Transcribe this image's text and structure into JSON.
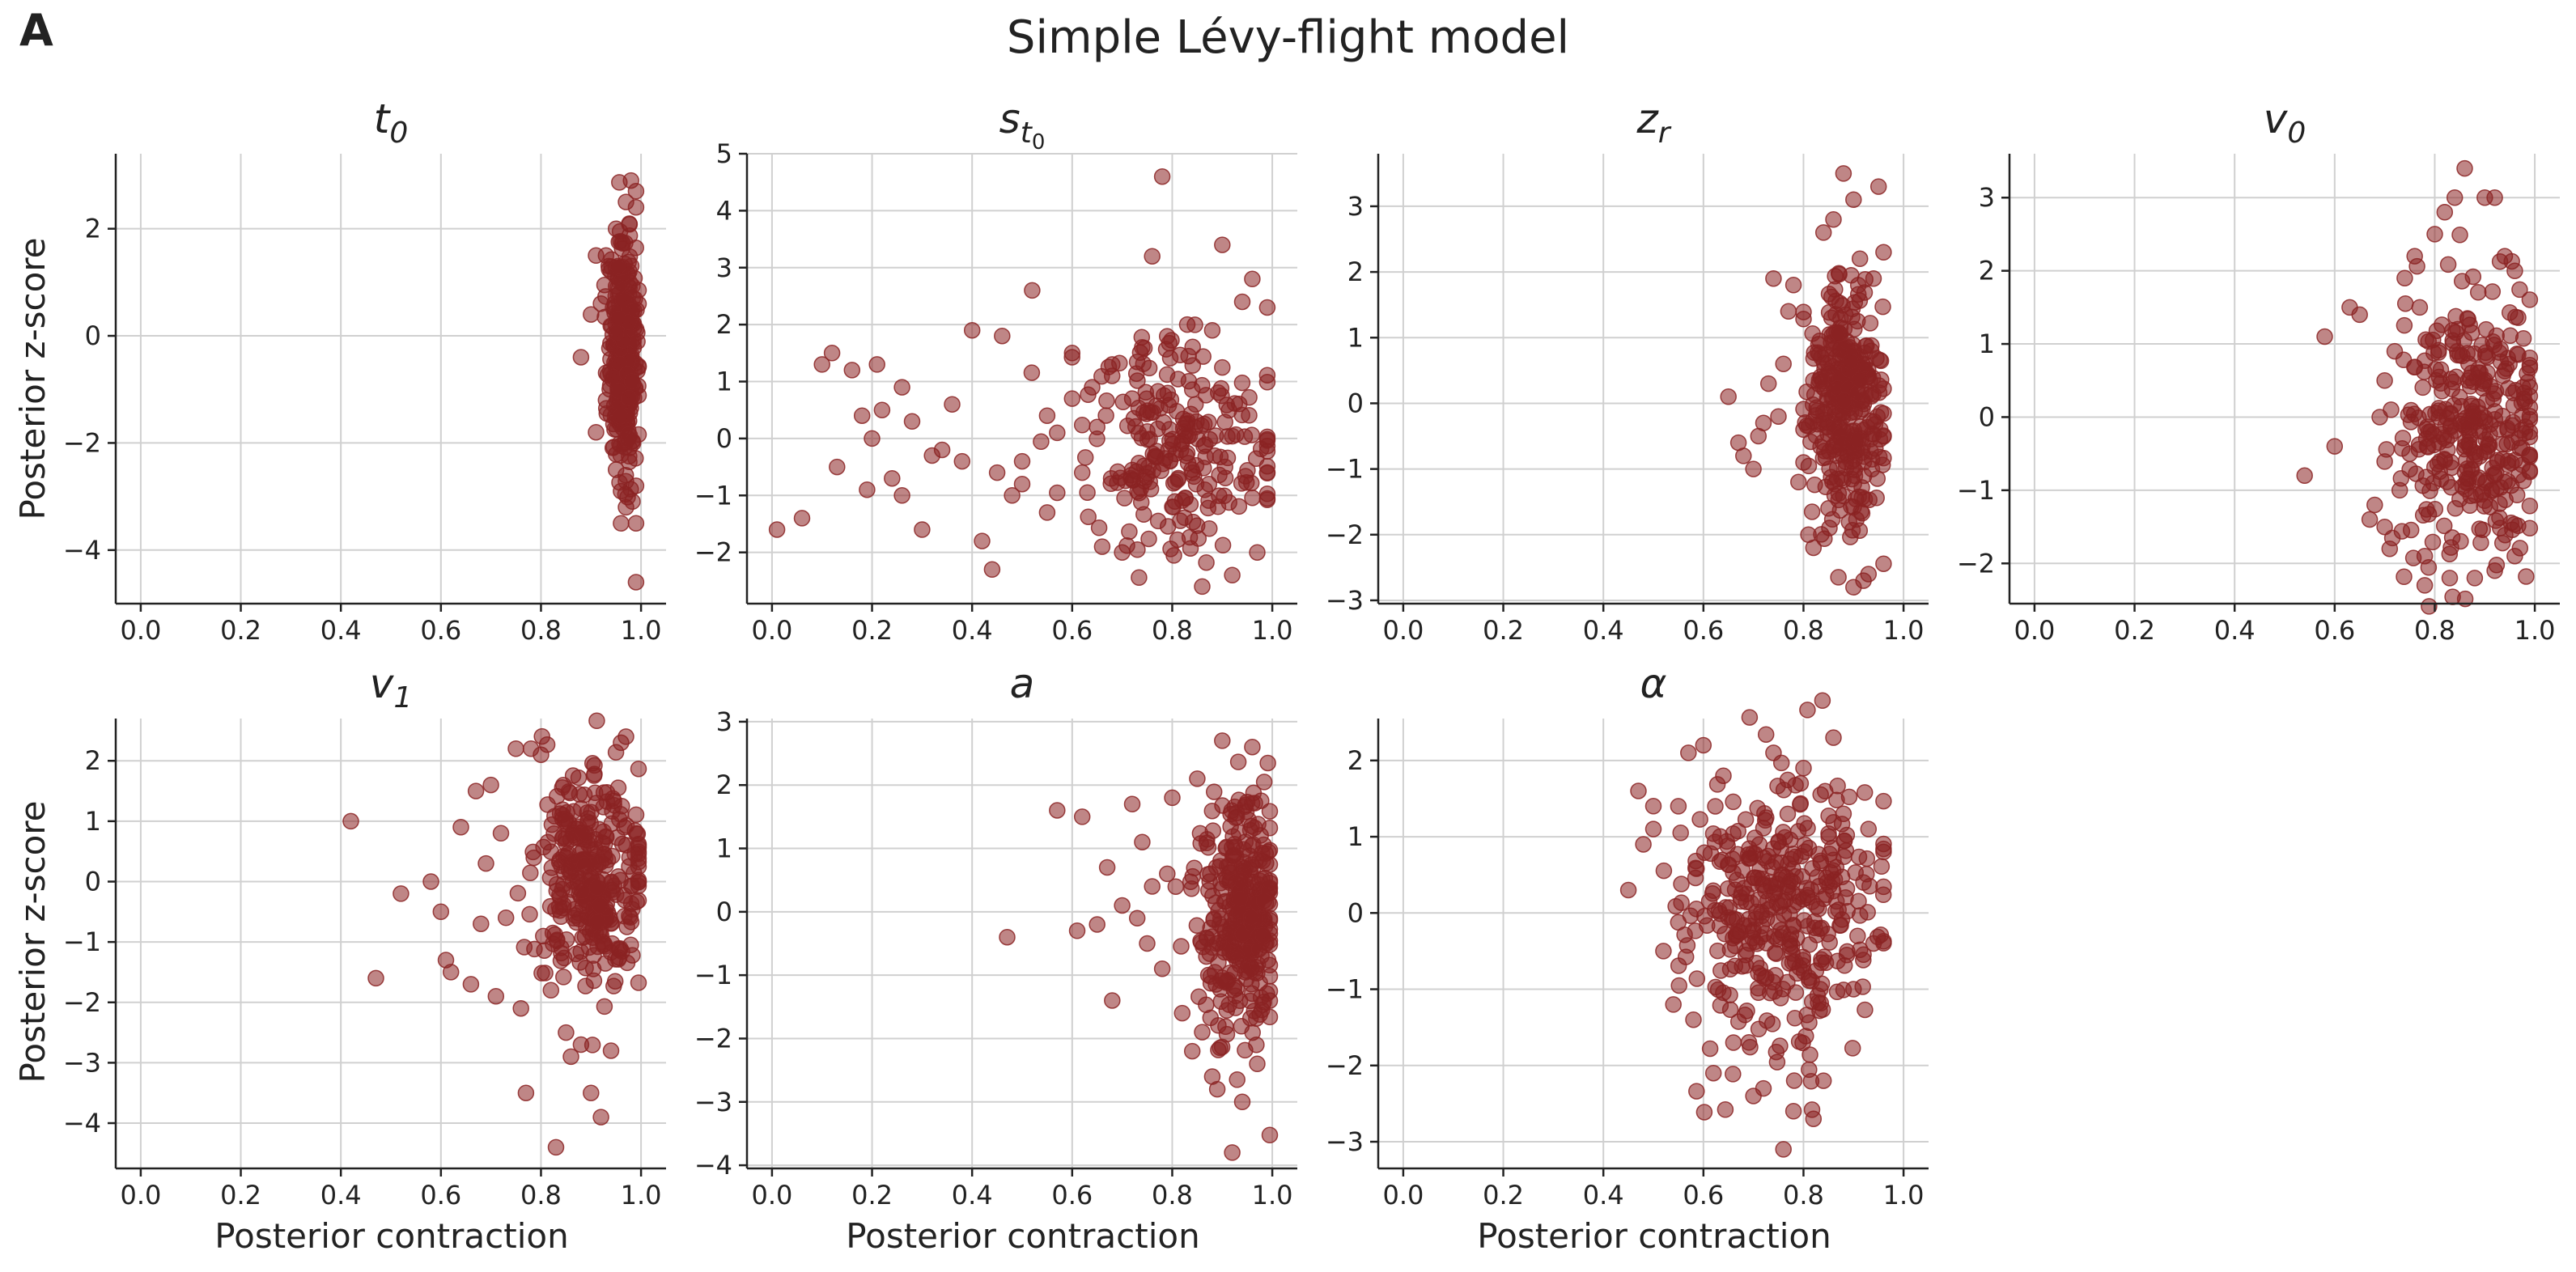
{
  "figure": {
    "panel_letter": "A",
    "title": "Simple Lévy-flight model",
    "ylabel": "Posterior z-score",
    "xlabel": "Posterior contraction",
    "point_color": "#8B2323"
  },
  "chart_data": [
    {
      "type": "scatter",
      "title": "t0",
      "title_main": "t",
      "title_sub": "0",
      "xlim": [
        -0.05,
        1.05
      ],
      "ylim": [
        -5.0,
        3.4
      ],
      "xticks": [
        0.0,
        0.2,
        0.4,
        0.6,
        0.8,
        1.0
      ],
      "xtick_labels": [
        "0.0",
        "0.2",
        "0.4",
        "0.6",
        "0.8",
        "1.0"
      ],
      "yticks": [
        -4,
        -2,
        0,
        2
      ],
      "ytick_labels": [
        "−4",
        "−2",
        "0",
        "2"
      ],
      "grid": true,
      "cloud": {
        "n": 340,
        "x_mean": 0.965,
        "x_sd": 0.015,
        "x_min": 0.92,
        "x_max": 0.995,
        "y_mean": -0.3,
        "y_sd": 1.05
      },
      "points": [
        [
          0.98,
          2.9
        ],
        [
          0.99,
          2.7
        ],
        [
          0.97,
          2.5
        ],
        [
          0.99,
          2.4
        ],
        [
          0.95,
          2.0
        ],
        [
          0.93,
          1.5
        ],
        [
          0.91,
          1.5
        ],
        [
          0.88,
          -0.4
        ],
        [
          0.92,
          0.6
        ],
        [
          0.91,
          -1.8
        ],
        [
          0.96,
          -3.5
        ],
        [
          0.99,
          -3.5
        ],
        [
          0.99,
          -4.6
        ],
        [
          0.97,
          -3.2
        ],
        [
          0.96,
          -2.9
        ],
        [
          0.93,
          -1.2
        ],
        [
          0.94,
          1.2
        ],
        [
          0.9,
          0.4
        ],
        [
          0.99,
          -2.8
        ],
        [
          0.95,
          -2.5
        ]
      ]
    },
    {
      "type": "scatter",
      "title": "s_t0",
      "title_main": "s",
      "title_sub": "t",
      "title_subsub": "0",
      "xlim": [
        -0.05,
        1.05
      ],
      "ylim": [
        -2.9,
        5.0
      ],
      "xticks": [
        0.0,
        0.2,
        0.4,
        0.6,
        0.8,
        1.0
      ],
      "xtick_labels": [
        "0.0",
        "0.2",
        "0.4",
        "0.6",
        "0.8",
        "1.0"
      ],
      "yticks": [
        -2,
        -1,
        0,
        1,
        2,
        3,
        4,
        5
      ],
      "ytick_labels": [
        "−2",
        "−1",
        "0",
        "1",
        "2",
        "3",
        "4",
        "5"
      ],
      "grid": true,
      "cloud": {
        "n": 230,
        "x_mean": 0.83,
        "x_sd": 0.11,
        "x_min": 0.45,
        "x_max": 0.99,
        "y_mean": -0.1,
        "y_sd": 0.9
      },
      "points": [
        [
          0.01,
          -1.6
        ],
        [
          0.06,
          -1.4
        ],
        [
          0.1,
          1.3
        ],
        [
          0.12,
          1.5
        ],
        [
          0.13,
          -0.5
        ],
        [
          0.16,
          1.2
        ],
        [
          0.19,
          -0.9
        ],
        [
          0.2,
          0.0
        ],
        [
          0.21,
          1.3
        ],
        [
          0.22,
          0.5
        ],
        [
          0.24,
          -0.7
        ],
        [
          0.26,
          -1.0
        ],
        [
          0.28,
          0.3
        ],
        [
          0.3,
          -1.6
        ],
        [
          0.34,
          -0.2
        ],
        [
          0.36,
          0.6
        ],
        [
          0.38,
          -0.4
        ],
        [
          0.4,
          1.9
        ],
        [
          0.42,
          -1.8
        ],
        [
          0.44,
          -2.3
        ],
        [
          0.46,
          1.8
        ],
        [
          0.48,
          -1.0
        ],
        [
          0.5,
          -0.8
        ],
        [
          0.52,
          2.6
        ],
        [
          0.55,
          -1.3
        ],
        [
          0.57,
          0.1
        ],
        [
          0.6,
          1.5
        ],
        [
          0.62,
          -0.6
        ],
        [
          0.64,
          0.9
        ],
        [
          0.66,
          -1.9
        ],
        [
          0.68,
          1.3
        ],
        [
          0.7,
          -2.0
        ],
        [
          0.72,
          0.7
        ],
        [
          0.74,
          1.6
        ],
        [
          0.76,
          3.2
        ],
        [
          0.78,
          4.6
        ],
        [
          0.8,
          -1.2
        ],
        [
          0.9,
          3.4
        ],
        [
          0.96,
          2.8
        ],
        [
          0.99,
          2.3
        ],
        [
          0.86,
          -2.6
        ],
        [
          0.92,
          -2.4
        ],
        [
          0.97,
          -2.0
        ],
        [
          0.83,
          2.0
        ],
        [
          0.88,
          1.9
        ],
        [
          0.94,
          2.4
        ],
        [
          0.6,
          0.7
        ],
        [
          0.55,
          0.4
        ],
        [
          0.45,
          -0.6
        ],
        [
          0.65,
          0.2
        ],
        [
          0.32,
          -0.3
        ],
        [
          0.18,
          0.4
        ],
        [
          0.26,
          0.9
        ],
        [
          0.5,
          -0.4
        ]
      ]
    },
    {
      "type": "scatter",
      "title": "zr",
      "title_main": "z",
      "title_sub": "r",
      "xlim": [
        -0.05,
        1.05
      ],
      "ylim": [
        -3.05,
        3.8
      ],
      "xticks": [
        0.0,
        0.2,
        0.4,
        0.6,
        0.8,
        1.0
      ],
      "xtick_labels": [
        "0.0",
        "0.2",
        "0.4",
        "0.6",
        "0.8",
        "1.0"
      ],
      "yticks": [
        -3,
        -2,
        -1,
        0,
        1,
        2,
        3
      ],
      "ytick_labels": [
        "−3",
        "−2",
        "−1",
        "0",
        "1",
        "2",
        "3"
      ],
      "grid": true,
      "cloud": {
        "n": 330,
        "x_mean": 0.885,
        "x_sd": 0.035,
        "x_min": 0.8,
        "x_max": 0.96,
        "y_mean": 0.0,
        "y_sd": 0.95
      },
      "points": [
        [
          0.65,
          0.1
        ],
        [
          0.67,
          -0.6
        ],
        [
          0.68,
          -0.8
        ],
        [
          0.7,
          -1.0
        ],
        [
          0.72,
          -0.3
        ],
        [
          0.74,
          1.9
        ],
        [
          0.76,
          0.6
        ],
        [
          0.77,
          1.4
        ],
        [
          0.78,
          1.8
        ],
        [
          0.79,
          -1.2
        ],
        [
          0.81,
          -2.0
        ],
        [
          0.82,
          -2.2
        ],
        [
          0.84,
          2.6
        ],
        [
          0.86,
          2.8
        ],
        [
          0.88,
          3.5
        ],
        [
          0.9,
          3.1
        ],
        [
          0.95,
          3.3
        ],
        [
          0.93,
          -2.6
        ],
        [
          0.92,
          -2.7
        ],
        [
          0.9,
          -2.8
        ],
        [
          0.83,
          0.9
        ],
        [
          0.8,
          -0.4
        ],
        [
          0.75,
          -0.2
        ],
        [
          0.73,
          0.3
        ],
        [
          0.71,
          -0.5
        ],
        [
          0.96,
          2.3
        ],
        [
          0.94,
          1.9
        ],
        [
          0.85,
          -1.6
        ]
      ]
    },
    {
      "type": "scatter",
      "title": "v0",
      "title_main": "v",
      "title_sub": "0",
      "xlim": [
        -0.05,
        1.05
      ],
      "ylim": [
        -2.55,
        3.6
      ],
      "xticks": [
        0.0,
        0.2,
        0.4,
        0.6,
        0.8,
        1.0
      ],
      "xtick_labels": [
        "0.0",
        "0.2",
        "0.4",
        "0.6",
        "0.8",
        "1.0"
      ],
      "yticks": [
        -2,
        -1,
        0,
        1,
        2,
        3
      ],
      "ytick_labels": [
        "−2",
        "−1",
        "0",
        "1",
        "2",
        "3"
      ],
      "grid": true,
      "cloud": {
        "n": 330,
        "x_mean": 0.88,
        "x_sd": 0.07,
        "x_min": 0.7,
        "x_max": 0.99,
        "y_mean": -0.05,
        "y_sd": 0.95
      },
      "points": [
        [
          0.54,
          -0.8
        ],
        [
          0.58,
          1.1
        ],
        [
          0.6,
          -0.4
        ],
        [
          0.63,
          1.5
        ],
        [
          0.65,
          1.4
        ],
        [
          0.68,
          -1.2
        ],
        [
          0.7,
          0.5
        ],
        [
          0.71,
          -1.8
        ],
        [
          0.72,
          0.9
        ],
        [
          0.74,
          1.9
        ],
        [
          0.75,
          -0.5
        ],
        [
          0.76,
          2.2
        ],
        [
          0.78,
          -1.9
        ],
        [
          0.8,
          2.5
        ],
        [
          0.82,
          2.8
        ],
        [
          0.84,
          3.0
        ],
        [
          0.86,
          3.4
        ],
        [
          0.9,
          3.0
        ],
        [
          0.92,
          3.0
        ],
        [
          0.94,
          2.2
        ],
        [
          0.96,
          2.0
        ],
        [
          0.78,
          -2.3
        ],
        [
          0.83,
          -2.2
        ],
        [
          0.88,
          -2.2
        ],
        [
          0.92,
          -2.1
        ],
        [
          0.96,
          -1.9
        ],
        [
          0.67,
          -1.4
        ],
        [
          0.69,
          0.0
        ],
        [
          0.73,
          -1.0
        ],
        [
          0.77,
          1.5
        ]
      ]
    },
    {
      "type": "scatter",
      "title": "v1",
      "title_main": "v",
      "title_sub": "1",
      "xlim": [
        -0.05,
        1.05
      ],
      "ylim": [
        -4.75,
        2.7
      ],
      "xticks": [
        0.0,
        0.2,
        0.4,
        0.6,
        0.8,
        1.0
      ],
      "xtick_labels": [
        "0.0",
        "0.2",
        "0.4",
        "0.6",
        "0.8",
        "1.0"
      ],
      "yticks": [
        -4,
        -3,
        -2,
        -1,
        0,
        1,
        2
      ],
      "ytick_labels": [
        "−4",
        "−3",
        "−2",
        "−1",
        "0",
        "1",
        "2"
      ],
      "grid": true,
      "cloud": {
        "n": 330,
        "x_mean": 0.9,
        "x_sd": 0.055,
        "x_min": 0.72,
        "x_max": 0.995,
        "y_mean": 0.1,
        "y_sd": 0.9
      },
      "points": [
        [
          0.42,
          1.0
        ],
        [
          0.47,
          -1.6
        ],
        [
          0.52,
          -0.2
        ],
        [
          0.58,
          0.0
        ],
        [
          0.6,
          -0.5
        ],
        [
          0.61,
          -1.3
        ],
        [
          0.62,
          -1.5
        ],
        [
          0.64,
          0.9
        ],
        [
          0.66,
          -1.7
        ],
        [
          0.67,
          1.5
        ],
        [
          0.68,
          -0.7
        ],
        [
          0.7,
          1.6
        ],
        [
          0.71,
          -1.9
        ],
        [
          0.73,
          -0.6
        ],
        [
          0.75,
          2.2
        ],
        [
          0.76,
          -2.1
        ],
        [
          0.77,
          -3.5
        ],
        [
          0.78,
          2.2
        ],
        [
          0.8,
          2.1
        ],
        [
          0.82,
          -1.8
        ],
        [
          0.83,
          -4.4
        ],
        [
          0.85,
          -2.5
        ],
        [
          0.86,
          -2.9
        ],
        [
          0.88,
          -2.7
        ],
        [
          0.9,
          -3.5
        ],
        [
          0.92,
          -3.9
        ],
        [
          0.94,
          -2.8
        ],
        [
          0.96,
          2.3
        ],
        [
          0.97,
          2.4
        ],
        [
          0.69,
          0.3
        ],
        [
          0.72,
          0.8
        ]
      ]
    },
    {
      "type": "scatter",
      "title": "a",
      "title_main": "a",
      "title_sub": "",
      "xlim": [
        -0.05,
        1.05
      ],
      "ylim": [
        -4.05,
        3.05
      ],
      "xticks": [
        0.0,
        0.2,
        0.4,
        0.6,
        0.8,
        1.0
      ],
      "xtick_labels": [
        "0.0",
        "0.2",
        "0.4",
        "0.6",
        "0.8",
        "1.0"
      ],
      "yticks": [
        -4,
        -3,
        -2,
        -1,
        0,
        1,
        2,
        3
      ],
      "ytick_labels": [
        "−4",
        "−3",
        "−2",
        "−1",
        "0",
        "1",
        "2",
        "3"
      ],
      "grid": true,
      "cloud": {
        "n": 330,
        "x_mean": 0.935,
        "x_sd": 0.04,
        "x_min": 0.8,
        "x_max": 0.995,
        "y_mean": -0.1,
        "y_sd": 0.95
      },
      "points": [
        [
          0.47,
          -0.4
        ],
        [
          0.57,
          1.6
        ],
        [
          0.61,
          -0.3
        ],
        [
          0.62,
          1.5
        ],
        [
          0.65,
          -0.2
        ],
        [
          0.67,
          0.7
        ],
        [
          0.68,
          -1.4
        ],
        [
          0.7,
          0.1
        ],
        [
          0.72,
          1.7
        ],
        [
          0.74,
          1.1
        ],
        [
          0.75,
          -0.5
        ],
        [
          0.76,
          0.4
        ],
        [
          0.78,
          -0.9
        ],
        [
          0.8,
          1.8
        ],
        [
          0.82,
          -1.6
        ],
        [
          0.84,
          -2.2
        ],
        [
          0.86,
          -1.9
        ],
        [
          0.88,
          -2.6
        ],
        [
          0.89,
          -2.8
        ],
        [
          0.9,
          2.7
        ],
        [
          0.92,
          -3.8
        ],
        [
          0.94,
          -3.0
        ],
        [
          0.96,
          2.6
        ],
        [
          0.97,
          -2.4
        ],
        [
          0.85,
          2.1
        ],
        [
          0.73,
          -0.1
        ],
        [
          0.79,
          0.6
        ]
      ]
    },
    {
      "type": "scatter",
      "title": "alpha",
      "title_main": "α",
      "title_sub": "",
      "xlim": [
        -0.05,
        1.05
      ],
      "ylim": [
        -3.35,
        2.55
      ],
      "xticks": [
        0.0,
        0.2,
        0.4,
        0.6,
        0.8,
        1.0
      ],
      "xtick_labels": [
        "0.0",
        "0.2",
        "0.4",
        "0.6",
        "0.8",
        "1.0"
      ],
      "yticks": [
        -3,
        -2,
        -1,
        0,
        1,
        2
      ],
      "ytick_labels": [
        "−3",
        "−2",
        "−1",
        "0",
        "1",
        "2"
      ],
      "grid": true,
      "cloud": {
        "n": 380,
        "x_mean": 0.75,
        "x_sd": 0.095,
        "x_min": 0.5,
        "x_max": 0.96,
        "y_mean": 0.0,
        "y_sd": 0.9
      },
      "points": [
        [
          0.45,
          0.3
        ],
        [
          0.47,
          1.6
        ],
        [
          0.48,
          0.9
        ],
        [
          0.5,
          1.1
        ],
        [
          0.52,
          -0.5
        ],
        [
          0.54,
          -1.2
        ],
        [
          0.55,
          1.4
        ],
        [
          0.57,
          2.1
        ],
        [
          0.58,
          -1.4
        ],
        [
          0.6,
          2.2
        ],
        [
          0.62,
          -2.1
        ],
        [
          0.64,
          1.8
        ],
        [
          0.66,
          -1.7
        ],
        [
          0.7,
          -2.4
        ],
        [
          0.72,
          -2.3
        ],
        [
          0.74,
          2.1
        ],
        [
          0.76,
          -3.1
        ],
        [
          0.78,
          -2.6
        ],
        [
          0.8,
          1.9
        ],
        [
          0.82,
          -2.7
        ],
        [
          0.84,
          -2.2
        ],
        [
          0.86,
          2.3
        ],
        [
          0.88,
          1.3
        ],
        [
          0.9,
          -1.0
        ],
        [
          0.92,
          0.4
        ],
        [
          0.94,
          -0.4
        ],
        [
          0.96,
          0.8
        ],
        [
          0.93,
          1.1
        ]
      ]
    }
  ]
}
